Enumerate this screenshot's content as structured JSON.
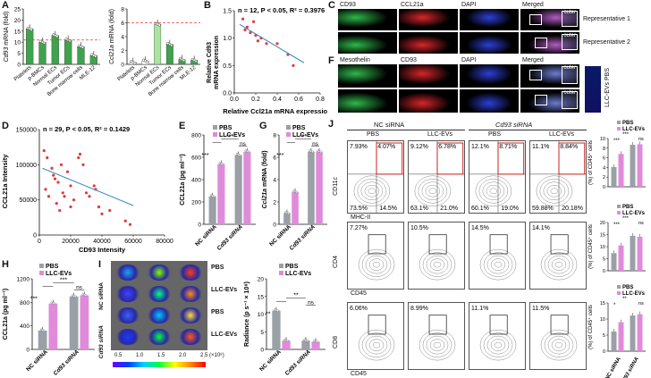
{
  "panels": {
    "A": "A",
    "B": "B",
    "C": "C",
    "D": "D",
    "E": "E",
    "F": "F",
    "G": "G",
    "H": "H",
    "I": "I",
    "J": "J"
  },
  "colors": {
    "pbs": "#9aa0a6",
    "llc": "#e08bd9",
    "green_bar": "#3fa34d",
    "light_green": "#a9e4a0",
    "red_line": "#e23b3b",
    "fit_line": "#3c8dc4",
    "scatter": "#e03b3b",
    "gate": "#cc2222"
  },
  "panelA": {
    "left": {
      "ylabel_gene": "Cd93",
      "ylabel_rest": " mRNA (fold)",
      "categories": [
        "Platelets",
        "p-BMCs",
        "Normal ECs",
        "Tumor ECs",
        "Bone marrow cells",
        "MLE-12"
      ],
      "values": [
        16,
        10,
        13,
        11,
        8,
        4
      ],
      "yticks": [
        "0",
        "5",
        "10",
        "15",
        "20",
        "25"
      ],
      "ylim": [
        0,
        25
      ]
    },
    "right": {
      "ylabel_gene": "Ccl21a",
      "ylabel_rest": " mRNA (fold)",
      "categories": [
        "Platelets",
        "p-BMCs",
        "Normal ECs",
        "Tumor ECs",
        "Bone marrow cells",
        "MLE-12"
      ],
      "values": [
        0.3,
        0.5,
        5.8,
        2.9,
        0.7,
        0.6
      ],
      "yticks": [
        "0",
        "2",
        "4",
        "6",
        "8"
      ],
      "ylim": [
        0,
        8
      ]
    }
  },
  "panelB": {
    "stat": "n = 12, P < 0.05, R² = 0.3976",
    "ylabel1": "Relative Cd93",
    "ylabel2": "mRNA expression",
    "xlabel": "Relative Ccl21a mRNA expression",
    "xticks": [
      "0.0",
      "0.2",
      "0.4",
      "0.6",
      "0.8"
    ],
    "yticks": [
      "0.0",
      "0.5",
      "1.0",
      "1.5"
    ],
    "xlim": [
      0,
      0.8
    ],
    "ylim": [
      0,
      1.5
    ],
    "points": [
      [
        0.08,
        1.35
      ],
      [
        0.1,
        1.15
      ],
      [
        0.12,
        1.2
      ],
      [
        0.15,
        1.1
      ],
      [
        0.18,
        1.3
      ],
      [
        0.2,
        1.05
      ],
      [
        0.22,
        0.95
      ],
      [
        0.25,
        1.0
      ],
      [
        0.3,
        0.9
      ],
      [
        0.4,
        0.9
      ],
      [
        0.5,
        0.7
      ],
      [
        0.55,
        0.5
      ]
    ],
    "fit": [
      [
        0.05,
        1.25
      ],
      [
        0.65,
        0.55
      ]
    ]
  },
  "panelC": {
    "headers": [
      "CD93",
      "CCL21a",
      "DAPI",
      "Merged"
    ],
    "rows": [
      "Representative 1",
      "Representative 2"
    ],
    "outer": "outer"
  },
  "panelD": {
    "stat": "n = 29, P < 0.05, R² = 0.1429",
    "ylabel": "CCL21a Intensity",
    "xlabel": "CD93 Intensity",
    "xticks": [
      "0",
      "20000",
      "40000",
      "60000",
      "80000"
    ],
    "yticks": [
      "0",
      "50000",
      "100000",
      "150000"
    ],
    "xlim": [
      0,
      80000
    ],
    "ylim": [
      0,
      150000
    ],
    "points": [
      [
        3000,
        120000
      ],
      [
        5000,
        110000
      ],
      [
        8000,
        95000
      ],
      [
        9000,
        85000
      ],
      [
        10000,
        80000
      ],
      [
        12000,
        75000
      ],
      [
        14000,
        100000
      ],
      [
        15000,
        60000
      ],
      [
        16000,
        55000
      ],
      [
        18000,
        90000
      ],
      [
        20000,
        70000
      ],
      [
        20000,
        40000
      ],
      [
        22000,
        50000
      ],
      [
        25000,
        110000
      ],
      [
        26000,
        115000
      ],
      [
        28000,
        100000
      ],
      [
        30000,
        60000
      ],
      [
        32000,
        55000
      ],
      [
        35000,
        70000
      ],
      [
        36000,
        65000
      ],
      [
        38000,
        40000
      ],
      [
        40000,
        30000
      ],
      [
        45000,
        35000
      ],
      [
        55000,
        20000
      ],
      [
        58000,
        15000
      ],
      [
        4000,
        65000
      ],
      [
        6000,
        55000
      ],
      [
        11000,
        45000
      ],
      [
        13000,
        35000
      ]
    ],
    "fit": [
      [
        2000,
        95000
      ],
      [
        60000,
        42000
      ]
    ]
  },
  "panelE": {
    "ylabel": "CCL21a (pg ml⁻¹)",
    "groups": [
      "NC siRNA",
      "Cd93 siRNA"
    ],
    "legend": [
      "PBS",
      "LLC-EVs"
    ],
    "yticks": [
      "0",
      "200",
      "400",
      "600",
      "800"
    ],
    "ylim": [
      0,
      800
    ],
    "series": [
      {
        "name": "PBS",
        "values": [
          250,
          620
        ]
      },
      {
        "name": "LLC-EVs",
        "values": [
          540,
          650
        ]
      }
    ],
    "sig": [
      "***",
      "***",
      "ns"
    ]
  },
  "panelF": {
    "headers": [
      "Mesothelin",
      "CD93",
      "DAPI",
      "Merged"
    ],
    "side": "LLC-EVs PBS",
    "outer": "outer"
  },
  "panelG": {
    "ylabel_gene": "Ccl21a",
    "ylabel_rest": " mRNA (fold)",
    "groups": [
      "NC siRNA",
      "Cd93 siRNA"
    ],
    "legend": [
      "PBS",
      "LLC-EVs"
    ],
    "yticks": [
      "0",
      "2",
      "4",
      "6",
      "8"
    ],
    "ylim": [
      0,
      8
    ],
    "series": [
      {
        "name": "PBS",
        "values": [
          1,
          6.5
        ]
      },
      {
        "name": "LLC-EVs",
        "values": [
          2.9,
          6.5
        ]
      }
    ],
    "sig": [
      "***",
      "***",
      "ns"
    ]
  },
  "panelH": {
    "ylabel": "CCL21a (pg ml⁻¹)",
    "groups": [
      "NC siRNA",
      "Cd93 siRNA"
    ],
    "legend": [
      "PBS",
      "LLC-EVs"
    ],
    "yticks": [
      "0",
      "400",
      "800",
      "1200"
    ],
    "ylim": [
      0,
      1200
    ],
    "series": [
      {
        "name": "PBS",
        "values": [
          320,
          900
        ]
      },
      {
        "name": "LLC-EVs",
        "values": [
          780,
          920
        ]
      }
    ],
    "sig": [
      "***",
      "***",
      "ns"
    ]
  },
  "panelI": {
    "row_labels": [
      "PBS",
      "LLC-EVs",
      "PBS",
      "LLC-EVs"
    ],
    "group_labels": [
      "NC siRNA",
      "Cd93 siRNA"
    ],
    "scale_ticks": [
      "0.5",
      "1.0",
      "1.5",
      "2.0",
      "2.5 (×10⁸)"
    ],
    "ylabel": "Radiance (p s⁻¹ × 10⁸)",
    "groups": [
      "NC siRNA",
      "Cd93 siRNA"
    ],
    "legend": [
      "PBS",
      "LLC-EVs"
    ],
    "yticks": [
      "0",
      "5",
      "10",
      "15",
      "20"
    ],
    "ylim": [
      0,
      20
    ],
    "series": [
      {
        "name": "PBS",
        "values": [
          11,
          2.5
        ]
      },
      {
        "name": "LLC-EVs",
        "values": [
          2.5,
          2.2
        ]
      }
    ],
    "sig": [
      "**",
      "**",
      "ns"
    ]
  },
  "panelJ": {
    "col_groups": [
      "NC siRNA",
      "Cd93 siRNA"
    ],
    "col_sub": [
      "PBS",
      "LLC-EVs",
      "PBS",
      "LLC-EVs"
    ],
    "row1": {
      "ylab": "CD11c",
      "xlab": "MHC-II",
      "tl": [
        "7.93%",
        "9.12%",
        "12.1%",
        "11.1%"
      ],
      "tr": [
        "4.07%",
        "6.78%",
        "8.71%",
        "8.84%"
      ],
      "bl": [
        "73.5%",
        "63.1%",
        "60.1%",
        "59.88%"
      ],
      "br": [
        "14.5%",
        "21.0%",
        "19.0%",
        "20.18%"
      ]
    },
    "row2": {
      "ylab": "CD4",
      "xlab": "CD45",
      "vals": [
        "7.27%",
        "10.5%",
        "14.5%",
        "14.1%"
      ]
    },
    "row3": {
      "ylab": "CD8",
      "xlab": "CD45",
      "vals": [
        "6.06%",
        "8.99%",
        "11.1%",
        "11.5%"
      ]
    },
    "side": {
      "legend": [
        "PBS",
        "LLC-EVs"
      ],
      "ylabels": [
        "(%) of CD45⁺ cells",
        "(%) of CD45⁺ cells",
        "(%) of CD45⁺ cells"
      ],
      "groups": [
        "NC siRNA",
        "Cd93 siRNA"
      ],
      "charts": [
        {
          "yticks": [
            "0",
            "2",
            "4",
            "6",
            "8",
            "10"
          ],
          "ylim": [
            0,
            10
          ],
          "series": [
            {
              "name": "PBS",
              "values": [
                4.1,
                8.7
              ]
            },
            {
              "name": "LLC-EVs",
              "values": [
                6.8,
                8.8
              ]
            }
          ],
          "sig": [
            "***",
            "***",
            "ns"
          ]
        },
        {
          "yticks": [
            "0",
            "5",
            "10",
            "15",
            "20"
          ],
          "ylim": [
            0,
            20
          ],
          "series": [
            {
              "name": "PBS",
              "values": [
                7.3,
                14.5
              ]
            },
            {
              "name": "LLC-EVs",
              "values": [
                10.5,
                14.1
              ]
            }
          ],
          "sig": [
            "***",
            "***",
            "ns"
          ]
        },
        {
          "yticks": [
            "0",
            "5",
            "10",
            "15"
          ],
          "ylim": [
            0,
            15
          ],
          "series": [
            {
              "name": "PBS",
              "values": [
                6.1,
                11.1
              ]
            },
            {
              "name": "LLC-EVs",
              "values": [
                9.0,
                11.5
              ]
            }
          ],
          "sig": [
            "*",
            "**",
            "ns"
          ]
        }
      ]
    }
  }
}
